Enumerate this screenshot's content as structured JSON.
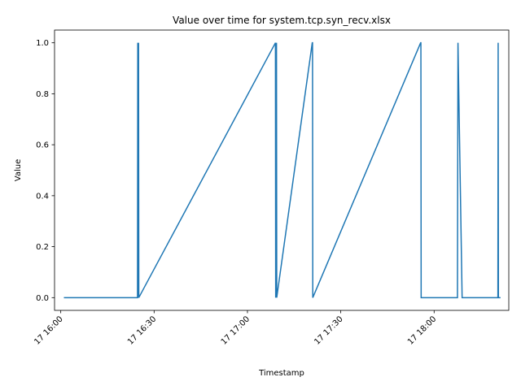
{
  "chart_data": {
    "type": "line",
    "title": "Value over time for system.tcp.syn_recv.xlsx",
    "xlabel": "Timestamp",
    "ylabel": "Value",
    "xlim": [
      "2024-01-17 15:58",
      "2024-01-17 18:24"
    ],
    "ylim": [
      -0.05,
      1.05
    ],
    "grid": false,
    "line_color": "#1f77b4",
    "x_ticks": [
      {
        "t": "2024-01-17 16:00",
        "label": "17 16:00"
      },
      {
        "t": "2024-01-17 16:30",
        "label": "17 16:30"
      },
      {
        "t": "2024-01-17 17:00",
        "label": "17 17:00"
      },
      {
        "t": "2024-01-17 17:30",
        "label": "17 17:30"
      },
      {
        "t": "2024-01-17 18:00",
        "label": "17 18:00"
      }
    ],
    "y_ticks": [
      {
        "v": 0.0,
        "label": "0.0"
      },
      {
        "v": 0.2,
        "label": "0.2"
      },
      {
        "v": 0.4,
        "label": "0.4"
      },
      {
        "v": 0.6,
        "label": "0.6"
      },
      {
        "v": 0.8,
        "label": "0.8"
      },
      {
        "v": 1.0,
        "label": "1.0"
      }
    ],
    "series": [
      {
        "x": [
          "2024-01-17 16:01",
          "2024-01-17 16:24:40",
          "2024-01-17 16:24:45",
          "2024-01-17 16:24:50",
          "2024-01-17 16:25:00",
          "2024-01-17 16:25:05",
          "2024-01-17 17:09:00",
          "2024-01-17 17:09:05",
          "2024-01-17 17:09:20",
          "2024-01-17 17:09:25",
          "2024-01-17 17:20:50",
          "2024-01-17 17:20:55",
          "2024-01-17 17:21:00",
          "2024-01-17 17:55:40",
          "2024-01-17 17:55:45",
          "2024-01-17 17:55:50",
          "2024-01-17 18:07:30",
          "2024-01-17 18:07:40",
          "2024-01-17 18:09:00",
          "2024-01-17 18:20:30",
          "2024-01-17 18:20:35",
          "2024-01-17 18:20:40",
          "2024-01-17 18:21:20"
        ],
        "y": [
          0,
          0,
          1,
          0,
          1,
          0,
          1,
          0,
          1,
          0,
          1,
          1,
          0,
          1,
          1,
          0,
          0,
          1,
          0,
          0,
          1,
          0,
          0
        ]
      }
    ]
  }
}
